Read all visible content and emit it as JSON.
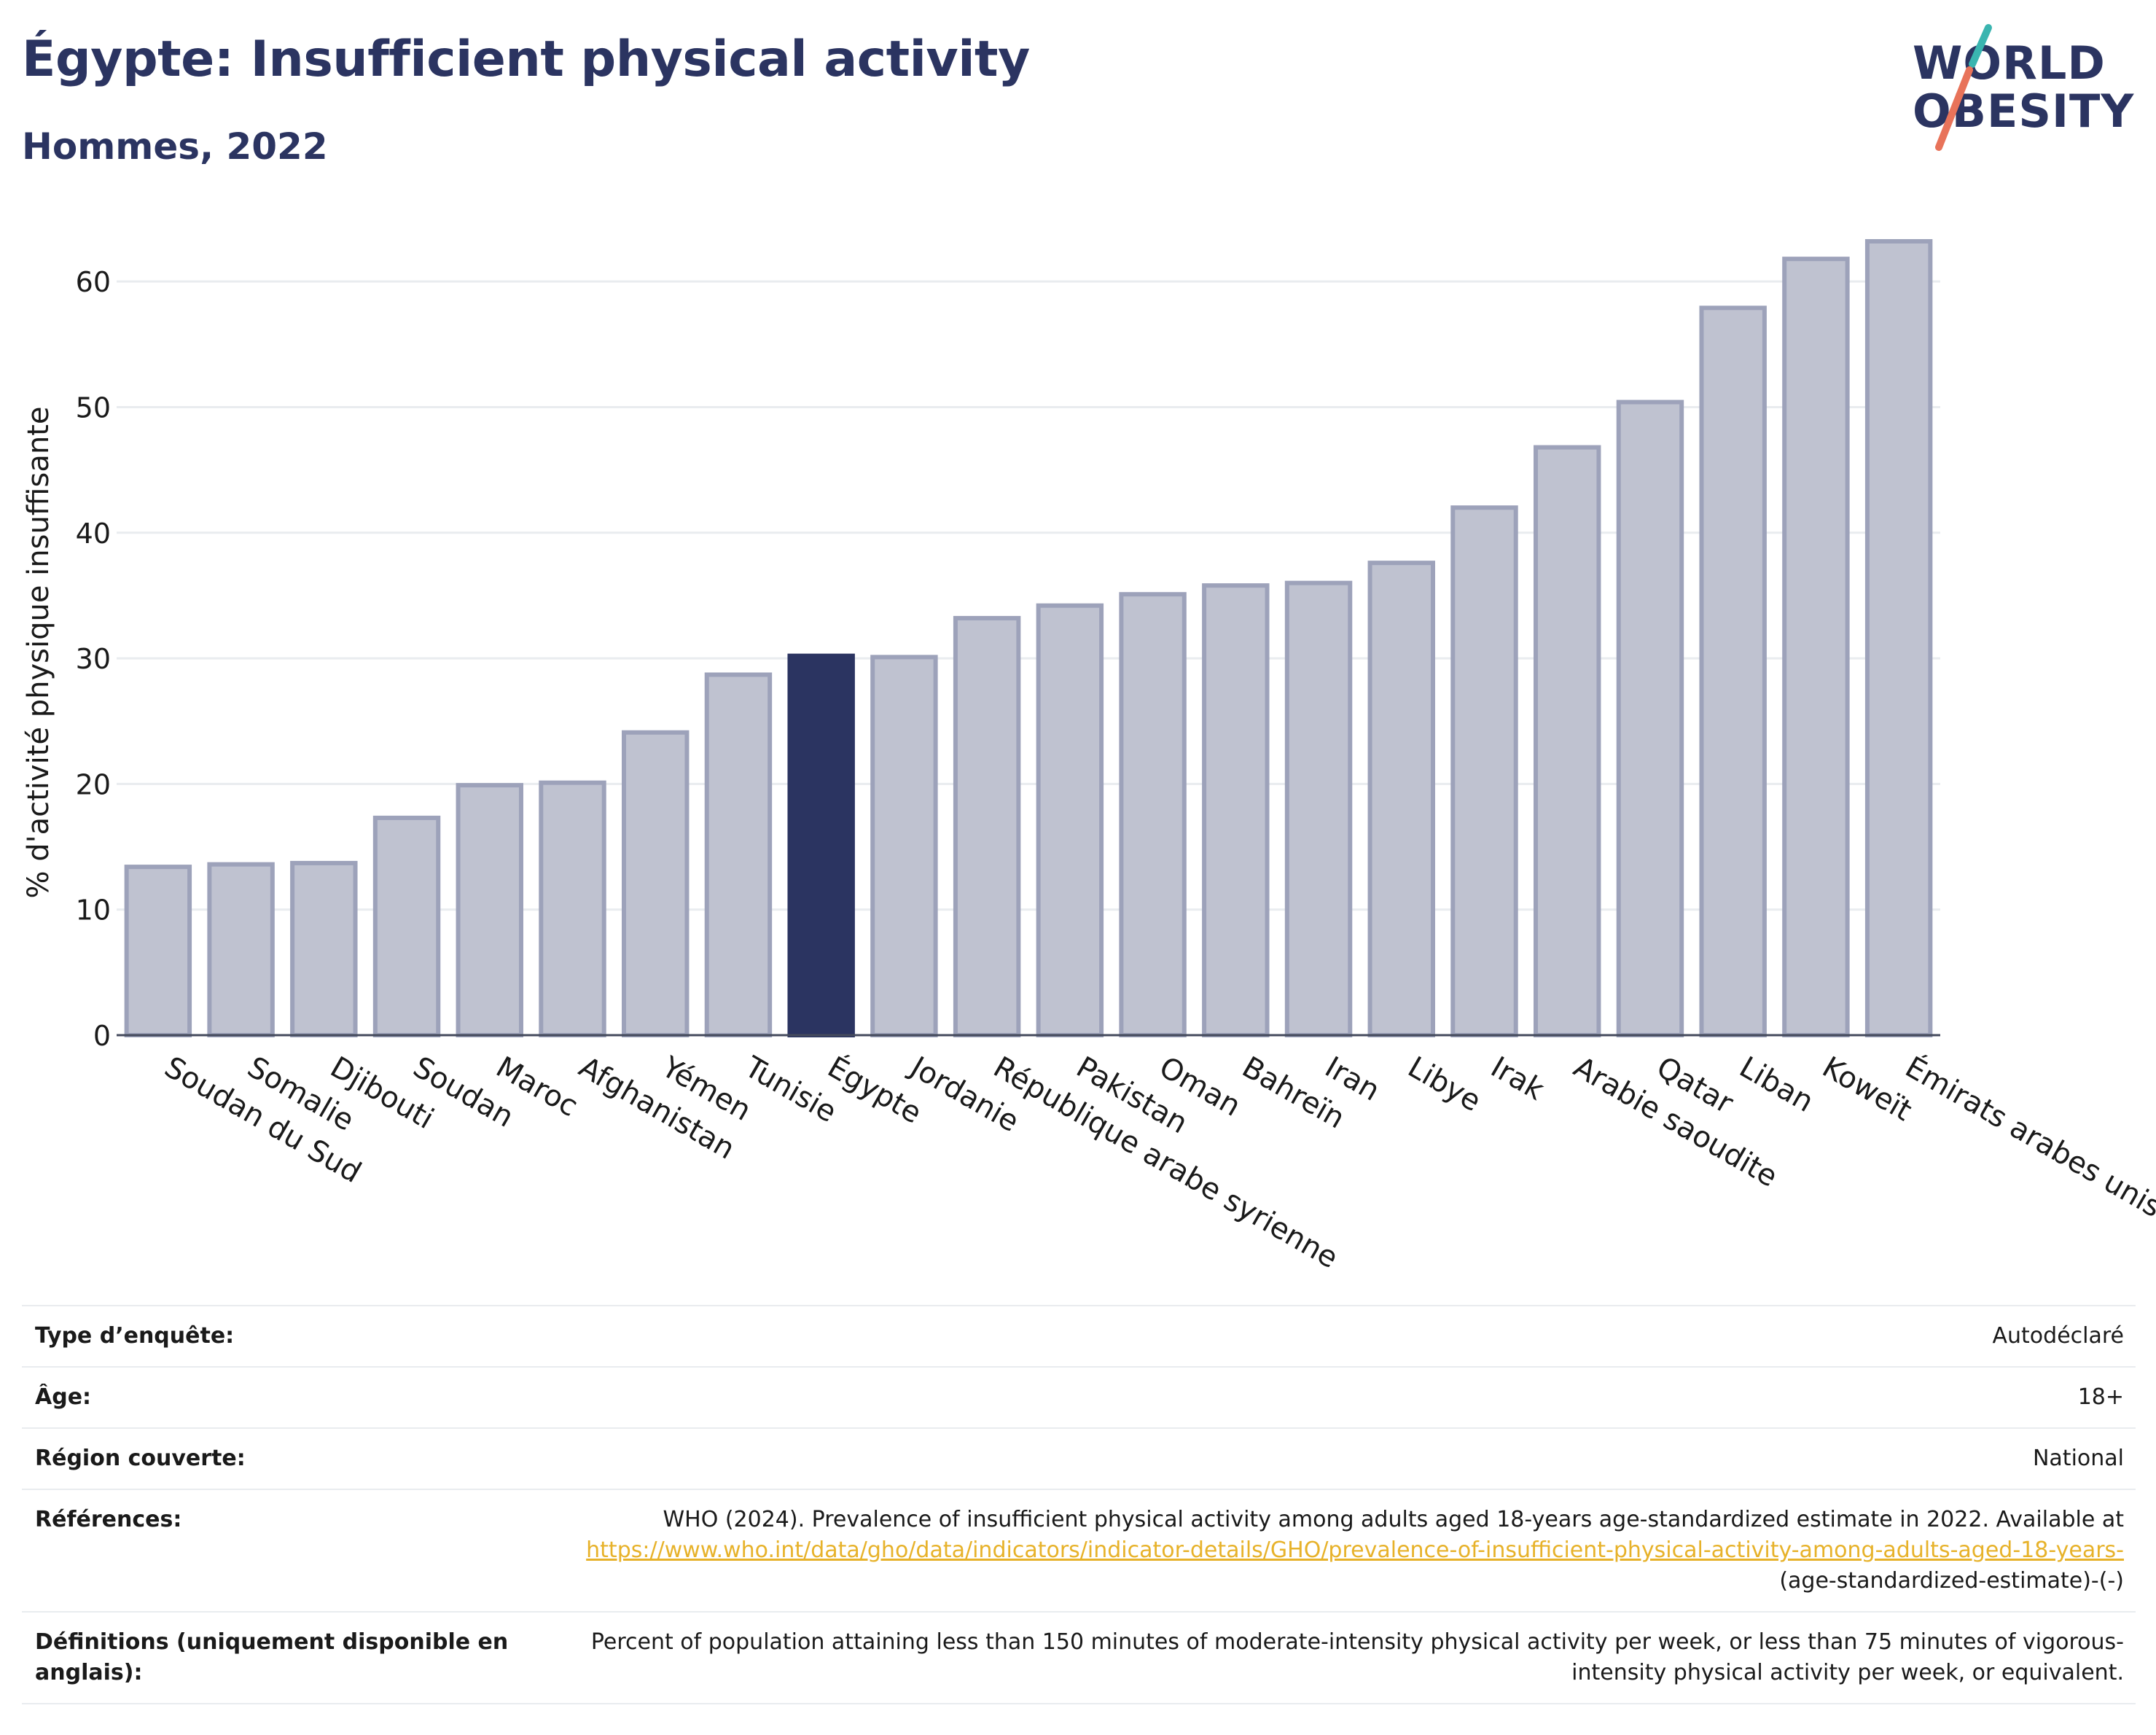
{
  "header": {
    "title": "Égypte: Insufficient physical activity",
    "subtitle": "Hommes, 2022"
  },
  "logo": {
    "line1": "WORLD",
    "line2": "OBESITY",
    "colors": {
      "text": "#2b3461",
      "slash_top": "#3ab5b0",
      "slash_bottom": "#e8735a"
    }
  },
  "colors": {
    "highlight_bar": "#2b3461",
    "other_bar": "#bfc2d0",
    "other_bar_border": "#9da2ba",
    "gridline": "#e9ecef",
    "link": "#e7b22a"
  },
  "chart_data": {
    "type": "bar",
    "title": "Égypte: Insufficient physical activity",
    "subtitle": "Hommes, 2022",
    "xlabel": "",
    "ylabel": "% d'activité physique insuffisante",
    "ylim": [
      0,
      65
    ],
    "yticks": [
      0,
      10,
      20,
      30,
      40,
      50,
      60
    ],
    "grid": true,
    "highlight": "Égypte",
    "categories": [
      "Soudan du Sud",
      "Somalie",
      "Djibouti",
      "Soudan",
      "Maroc",
      "Afghanistan",
      "Yémen",
      "Tunisie",
      "Égypte",
      "Jordanie",
      "République arabe syrienne",
      "Pakistan",
      "Oman",
      "Bahreïn",
      "Iran",
      "Libye",
      "Irak",
      "Arabie saoudite",
      "Qatar",
      "Liban",
      "Koweït",
      "Émirats arabes unis"
    ],
    "values": [
      13.4,
      13.6,
      13.7,
      17.3,
      19.9,
      20.1,
      24.1,
      28.7,
      30.2,
      30.1,
      33.2,
      34.2,
      35.1,
      35.8,
      36.0,
      37.6,
      42.0,
      46.8,
      50.4,
      57.9,
      61.8,
      63.2
    ]
  },
  "info": {
    "survey_type_label": "Type d’enquête:",
    "survey_type_value": "Autodéclaré",
    "age_label": "Âge:",
    "age_value": "18+",
    "region_label": "Région couverte:",
    "region_value": "National",
    "references_label": "Références:",
    "references_text": "WHO (2024). Prevalence of insufficient physical activity among adults aged 18-years age-standardized estimate in 2022. Available at",
    "references_link": "https://www.who.int/data/gho/data/indicators/indicator-details/GHO/prevalence-of-insufficient-physical-activity-among-adults-aged-18-years-",
    "references_suffix": "(age-standardized-estimate)-(-)",
    "definitions_label": "Définitions (uniquement disponible en anglais):",
    "definitions_value": "Percent of population attaining less than 150 minutes of moderate-intensity physical activity per week, or less than 75 minutes of vigorous-intensity physical activity per week, or equivalent."
  }
}
